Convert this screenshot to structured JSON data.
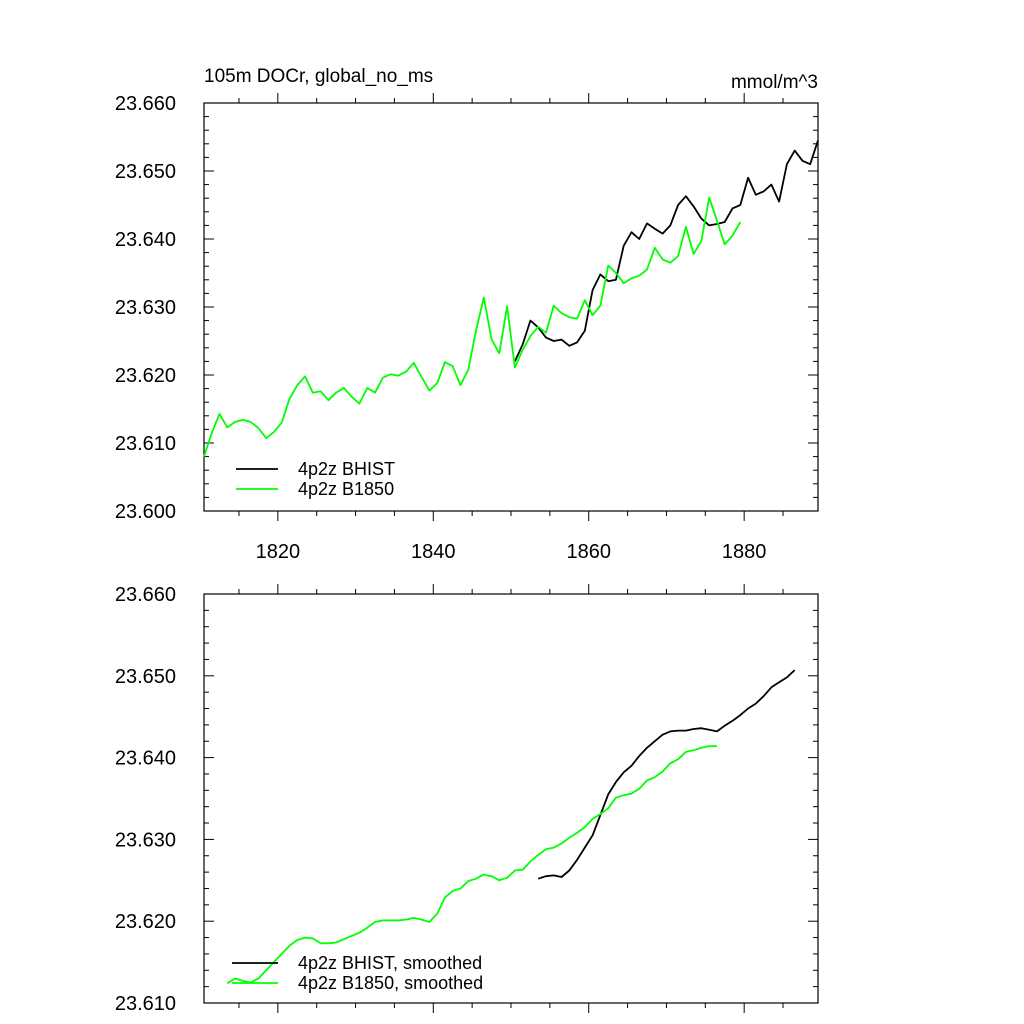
{
  "chart_data": [
    {
      "type": "line",
      "title": "105m DOCr, global_no_ms",
      "units": "mmol/m^3",
      "ylim": [
        23.6,
        23.66
      ],
      "yticks": [
        "23.600",
        "23.610",
        "23.620",
        "23.630",
        "23.640",
        "23.650",
        "23.660"
      ],
      "xlim": [
        1810.5,
        1889.5
      ],
      "xticks": [
        "1820",
        "1840",
        "1860",
        "1880"
      ],
      "series": [
        {
          "name": "4p2z BHIST",
          "color": "#000000",
          "x": [
            1850.5,
            1851.5,
            1852.5,
            1853.5,
            1854.5,
            1855.5,
            1856.5,
            1857.5,
            1858.5,
            1859.5,
            1860.5,
            1861.5,
            1862.5,
            1863.5,
            1864.5,
            1865.5,
            1866.5,
            1867.5,
            1868.5,
            1869.5,
            1870.5,
            1871.5,
            1872.5,
            1873.5,
            1874.5,
            1875.5,
            1876.5,
            1877.5,
            1878.5,
            1879.5,
            1880.5,
            1881.5,
            1882.5,
            1883.5,
            1884.5,
            1885.5,
            1886.5,
            1887.5,
            1888.5,
            1889.5
          ],
          "y": [
            23.622,
            23.6245,
            23.628,
            23.627,
            23.6255,
            23.625,
            23.6252,
            23.6243,
            23.6248,
            23.6265,
            23.6325,
            23.6348,
            23.6338,
            23.634,
            23.639,
            23.641,
            23.64,
            23.6423,
            23.6415,
            23.6408,
            23.642,
            23.645,
            23.6463,
            23.6448,
            23.643,
            23.642,
            23.6422,
            23.6425,
            23.6445,
            23.645,
            23.649,
            23.6465,
            23.647,
            23.648,
            23.6455,
            23.651,
            23.653,
            23.6515,
            23.651,
            23.6545
          ]
        },
        {
          "name": "4p2z B1850",
          "color": "#00ff00",
          "x": [
            1810.5,
            1811.5,
            1812.5,
            1813.5,
            1814.5,
            1815.5,
            1816.5,
            1817.5,
            1818.5,
            1819.5,
            1820.5,
            1821.5,
            1822.5,
            1823.5,
            1824.5,
            1825.5,
            1826.5,
            1827.5,
            1828.5,
            1829.5,
            1830.5,
            1831.5,
            1832.5,
            1833.5,
            1834.5,
            1835.5,
            1836.5,
            1837.5,
            1838.5,
            1839.5,
            1840.5,
            1841.5,
            1842.5,
            1843.5,
            1844.5,
            1845.5,
            1846.5,
            1847.5,
            1848.5,
            1849.5,
            1850.5,
            1851.5,
            1852.5,
            1853.5,
            1854.5,
            1855.5,
            1856.5,
            1857.5,
            1858.5,
            1859.5,
            1860.5,
            1861.5,
            1862.5,
            1863.5,
            1864.5,
            1865.5,
            1866.5,
            1867.5,
            1868.5,
            1869.5,
            1870.5,
            1871.5,
            1872.5,
            1873.5,
            1874.5,
            1875.5,
            1876.5,
            1877.5,
            1878.5,
            1879.5
          ],
          "y": [
            23.608,
            23.6115,
            23.6143,
            23.6123,
            23.6131,
            23.6134,
            23.6131,
            23.6122,
            23.6107,
            23.6116,
            23.613,
            23.6165,
            23.6185,
            23.6198,
            23.6174,
            23.6176,
            23.6163,
            23.6174,
            23.6181,
            23.6168,
            23.6158,
            23.6181,
            23.6174,
            23.6196,
            23.6201,
            23.6199,
            23.6205,
            23.6218,
            23.6197,
            23.6177,
            23.6188,
            23.6219,
            23.6213,
            23.6185,
            23.6208,
            23.6265,
            23.6314,
            23.6252,
            23.6232,
            23.6301,
            23.6211,
            23.6237,
            23.6257,
            23.6271,
            23.6262,
            23.6302,
            23.6291,
            23.6285,
            23.6283,
            23.631,
            23.6288,
            23.6302,
            23.6361,
            23.635,
            23.6335,
            23.6342,
            23.6346,
            23.6355,
            23.6387,
            23.637,
            23.6365,
            23.6375,
            23.6418,
            23.6378,
            23.6397,
            23.6461,
            23.6427,
            23.6392,
            23.6405,
            23.6425
          ]
        }
      ],
      "legend_position": "bottom-left"
    },
    {
      "type": "line",
      "ylim": [
        23.61,
        23.66
      ],
      "yticks": [
        "23.610",
        "23.620",
        "23.630",
        "23.640",
        "23.650",
        "23.660"
      ],
      "xlim": [
        1810.5,
        1889.5
      ],
      "series": [
        {
          "name": "4p2z BHIST, smoothed",
          "color": "#000000",
          "x": [
            1853.5,
            1854.5,
            1855.5,
            1856.5,
            1857.5,
            1858.5,
            1859.5,
            1860.5,
            1861.5,
            1862.5,
            1863.5,
            1864.5,
            1865.5,
            1866.5,
            1867.5,
            1868.5,
            1869.5,
            1870.5,
            1871.5,
            1872.5,
            1873.5,
            1874.5,
            1875.5,
            1876.5,
            1877.5,
            1878.5,
            1879.5,
            1880.5,
            1881.5,
            1882.5,
            1883.5,
            1884.5,
            1885.5,
            1886.5
          ],
          "y": [
            23.6252,
            23.6255,
            23.6256,
            23.6254,
            23.6262,
            23.6275,
            23.629,
            23.6305,
            23.633,
            23.6355,
            23.637,
            23.6382,
            23.639,
            23.6402,
            23.6412,
            23.642,
            23.6428,
            23.6432,
            23.6433,
            23.6433,
            23.6435,
            23.6436,
            23.6434,
            23.6432,
            23.6439,
            23.6445,
            23.6452,
            23.646,
            23.6466,
            23.6475,
            23.6486,
            23.6492,
            23.6498,
            23.6507
          ]
        },
        {
          "name": "4p2z B1850, smoothed",
          "color": "#00ff00",
          "x": [
            1813.5,
            1814.5,
            1815.5,
            1816.5,
            1817.5,
            1818.5,
            1819.5,
            1820.5,
            1821.5,
            1822.5,
            1823.5,
            1824.5,
            1825.5,
            1826.5,
            1827.5,
            1828.5,
            1829.5,
            1830.5,
            1831.5,
            1832.5,
            1833.5,
            1834.5,
            1835.5,
            1836.5,
            1837.5,
            1838.5,
            1839.5,
            1840.5,
            1841.5,
            1842.5,
            1843.5,
            1844.5,
            1845.5,
            1846.5,
            1847.5,
            1848.5,
            1849.5,
            1850.5,
            1851.5,
            1852.5,
            1853.5,
            1854.5,
            1855.5,
            1856.5,
            1857.5,
            1858.5,
            1859.5,
            1860.5,
            1861.5,
            1862.5,
            1863.5,
            1864.5,
            1865.5,
            1866.5,
            1867.5,
            1868.5,
            1869.5,
            1870.5,
            1871.5,
            1872.5,
            1873.5,
            1874.5,
            1875.5,
            1876.5
          ],
          "y": [
            23.6124,
            23.613,
            23.6127,
            23.6125,
            23.613,
            23.614,
            23.615,
            23.616,
            23.617,
            23.6177,
            23.618,
            23.6179,
            23.6173,
            23.6173,
            23.6174,
            23.6178,
            23.6182,
            23.6186,
            23.6192,
            23.6199,
            23.6201,
            23.6201,
            23.6201,
            23.6202,
            23.6204,
            23.6202,
            23.6199,
            23.6209,
            23.6229,
            23.6237,
            23.624,
            23.6249,
            23.6252,
            23.6257,
            23.6255,
            23.625,
            23.6253,
            23.6262,
            23.6263,
            23.6273,
            23.6281,
            23.6288,
            23.629,
            23.6295,
            23.6302,
            23.6308,
            23.6315,
            23.6325,
            23.6331,
            23.6338,
            23.6351,
            23.6354,
            23.6356,
            23.6362,
            23.6372,
            23.6376,
            23.6383,
            23.6393,
            23.6398,
            23.6407,
            23.6409,
            23.6412,
            23.6414,
            23.6414
          ]
        }
      ],
      "legend_position": "bottom-left"
    }
  ]
}
